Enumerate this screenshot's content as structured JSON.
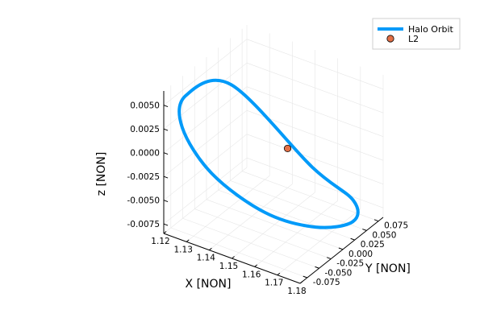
{
  "chart_data": {
    "type": "scatter",
    "projection": "3d",
    "title": "",
    "xlabel": "X [NON]",
    "ylabel": "Y [NON]",
    "zlabel": "z [NON]",
    "xlim": [
      1.12,
      1.18
    ],
    "ylim": [
      -0.09,
      0.085
    ],
    "zlim": [
      -0.0085,
      0.0065
    ],
    "x_ticks": [
      "1.12",
      "1.13",
      "1.14",
      "1.15",
      "1.16",
      "1.17",
      "1.18"
    ],
    "y_ticks": [
      "-0.075",
      "-0.050",
      "-0.025",
      "0.000",
      "0.025",
      "0.050",
      "0.075"
    ],
    "z_ticks": [
      "-0.0075",
      "-0.0050",
      "-0.0025",
      "0.0000",
      "0.0025",
      "0.0050"
    ],
    "grid": true,
    "legend_position": "top-right",
    "series": [
      {
        "name": "Halo Orbit",
        "type": "line",
        "color": "#009af9",
        "x": [
          1.135,
          1.123,
          1.125,
          1.137,
          1.155,
          1.168,
          1.175,
          1.17,
          1.154,
          1.135
        ],
        "y": [
          -0.02,
          -0.058,
          -0.075,
          -0.07,
          -0.045,
          0.0,
          0.045,
          0.07,
          0.06,
          -0.02
        ],
        "z": [
          0.0057,
          0.005,
          0.0025,
          -0.0015,
          -0.005,
          -0.0072,
          -0.0078,
          -0.007,
          -0.0045,
          0.0057
        ]
      },
      {
        "name": "L2",
        "type": "scatter",
        "color": "#e26f46",
        "x": [
          1.1557
        ],
        "y": [
          0.0
        ],
        "z": [
          0.0
        ]
      }
    ]
  }
}
